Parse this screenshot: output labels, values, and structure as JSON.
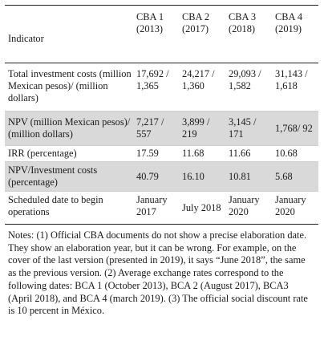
{
  "table": {
    "columns": [
      "Indicator",
      "CBA 1 (2013)",
      "CBA 2 (2017)",
      "CBA 3 (2018)",
      "CBA 4 (2019)"
    ],
    "rows": [
      {
        "indicator": "Total investment costs (million Mexican pesos)/ (million dollars)",
        "values": [
          "17,692 / 1,365",
          "24,217 / 1,360",
          "29,093 / 1,582",
          "31,143 / 1,618"
        ]
      },
      {
        "indicator": "NPV (million Mexican pesos)/ (million dollars)",
        "values": [
          "7,217 / 557",
          "3,899 / 219",
          "3,145 / 171",
          "1,768/ 92"
        ]
      },
      {
        "indicator": "IRR (percentage)",
        "values": [
          "17.59",
          "11.68",
          "11.66",
          "10.68"
        ]
      },
      {
        "indicator": "NPV/Investment costs (percentage)",
        "values": [
          "40.79",
          "16.10",
          "10.81",
          "5.68"
        ]
      },
      {
        "indicator": "Scheduled date to begin operations",
        "values": [
          "January 2017",
          "July 2018",
          "January 2020",
          "January 2020"
        ]
      }
    ]
  },
  "notes": "Notes: (1) Official CBA documents do not show a precise elaboration date. They show an elaboration year, but it can be wrong. For example, on the cover of the last version (presented in 2019), it says “June 2018”, the same as the previous version. (2) Average exchange rates correspond to the following dates: BCA 1 (October 2013), BCA 2 (August 2017), BCA3 (April 2018), and BCA 4 (march 2019). (3) The official social discount rate is 10 percent in México."
}
